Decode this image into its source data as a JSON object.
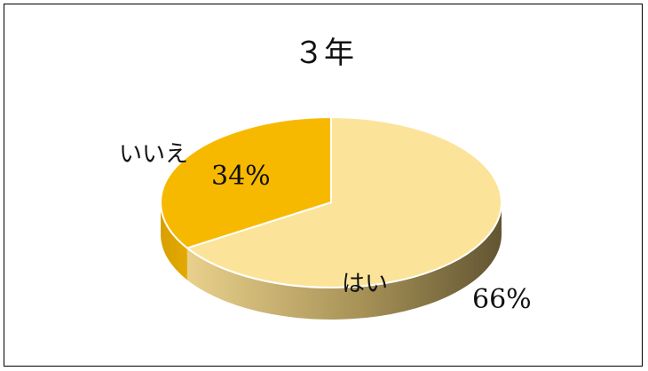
{
  "chart_data": {
    "type": "pie",
    "title": "３年",
    "categories": [
      "はい",
      "いいえ"
    ],
    "values": [
      66,
      34
    ],
    "unit": "%",
    "labels": [
      "66%",
      "34%"
    ],
    "style": "3d",
    "colors": {
      "はい": "#FBE49A",
      "いいえ": "#F7B900"
    }
  }
}
